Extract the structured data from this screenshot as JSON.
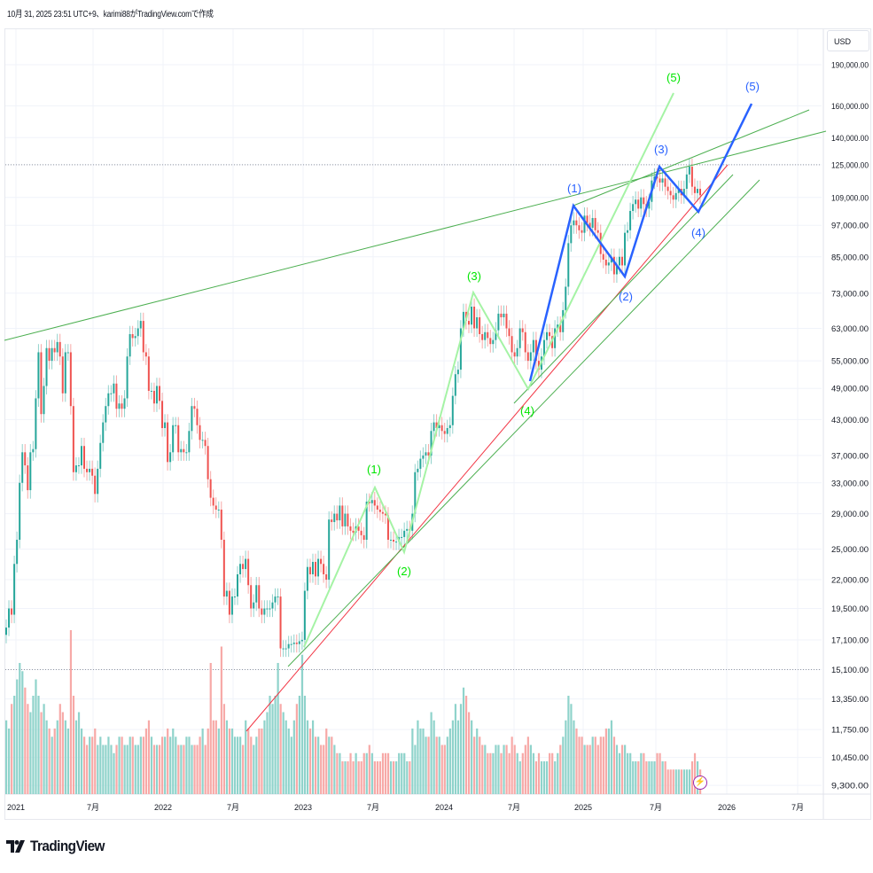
{
  "header": {
    "caption": "10月 31, 2025 23:51 UTC+9、karimi88がTradingView.comで作成"
  },
  "price_axis": {
    "currency": "USD"
  },
  "branding": {
    "logo_text": "TradingView"
  },
  "icons": {
    "alert": "lightning-icon",
    "logo": "tradingview-logo-icon"
  },
  "colors": {
    "up": "#26a69a",
    "down": "#ef5350",
    "vol_up": "#8fd3cb",
    "vol_down": "#f7a9a7",
    "trend_green": "#4caf50",
    "trend_red": "#f23645",
    "wave_light_green": "#a5f3a5",
    "wave_blue": "#2962ff",
    "label_green": "#00e600",
    "label_blue": "#2962ff"
  },
  "chart_data": {
    "type": "candlestick",
    "y_scale": "log",
    "interval": "weekly",
    "currency": "USD",
    "ylim": [
      9300,
      190000
    ],
    "y_ticks": [
      190000,
      160000,
      140000,
      125000,
      109000,
      97000,
      85000,
      73000,
      63000,
      55000,
      49000,
      43000,
      37000,
      33000,
      29000,
      25000,
      22000,
      19500,
      17100,
      15100,
      13350,
      11750,
      10450,
      9300
    ],
    "y_tick_labels": [
      "190,000.00",
      "160,000.00",
      "140,000.00",
      "125,000.00",
      "109,000.00",
      "97,000.00",
      "85,000.00",
      "73,000.00",
      "63,000.00",
      "55,000.00",
      "49,000.00",
      "43,000.00",
      "37,000.00",
      "33,000.00",
      "29,000.00",
      "25,000.00",
      "22,000.00",
      "19,500.00",
      "17,100.00",
      "15,100.00",
      "13,350.00",
      "11,750.00",
      "10,450.00",
      "9,300.00"
    ],
    "x_tick_labels": [
      "2021",
      "7月",
      "2022",
      "7月",
      "2023",
      "7月",
      "2024",
      "7月",
      "2025",
      "7月",
      "2026",
      "7月"
    ],
    "horizontal_levels": [
      125000,
      15100
    ],
    "closes": [
      18000,
      19500,
      19000,
      23500,
      26000,
      33000,
      37500,
      35500,
      32000,
      37500,
      38000,
      47000,
      57000,
      44000,
      49500,
      58000,
      55000,
      58000,
      57000,
      59500,
      56000,
      48000,
      57000,
      57000,
      45500,
      34500,
      35500,
      35500,
      38500,
      35000,
      34500,
      35000,
      34000,
      31500,
      35000,
      39000,
      42500,
      45500,
      48000,
      48000,
      50000,
      45000,
      46000,
      45000,
      47000,
      56000,
      61500,
      60500,
      61000,
      63000,
      65000,
      57000,
      56000,
      48500,
      48500,
      46000,
      49500,
      46500,
      41500,
      42500,
      36000,
      37500,
      42000,
      42000,
      37500,
      38000,
      37500,
      37500,
      41000,
      45500,
      45000,
      42000,
      39500,
      39500,
      38500,
      33500,
      31000,
      30000,
      29500,
      29500,
      26000,
      20500,
      21000,
      19000,
      20500,
      20500,
      22500,
      23500,
      23000,
      24000,
      21500,
      19500,
      20000,
      21500,
      19500,
      19000,
      19500,
      19500,
      19500,
      20000,
      20500,
      20500,
      16500,
      16500,
      16500,
      16800,
      16800,
      16900,
      16800,
      17000,
      17100,
      21000,
      23200,
      22500,
      23700,
      22300,
      24000,
      23500,
      22500,
      22000,
      28300,
      28000,
      29000,
      28200,
      30000,
      27500,
      29000,
      27500,
      27000,
      26800,
      27500,
      27000,
      26500,
      26000,
      30500,
      30300,
      30700,
      30000,
      29500,
      29200,
      29000,
      28800,
      26000,
      26000,
      25800,
      25800,
      26300,
      26300,
      27000,
      27200,
      27000,
      29000,
      34500,
      35000,
      36500,
      37000,
      37500,
      37000,
      41000,
      42500,
      41500,
      42000,
      41000,
      40500,
      41500,
      42000,
      47500,
      52000,
      53000,
      63000,
      67500,
      65000,
      64000,
      69000,
      63000,
      66000,
      61500,
      60000,
      62000,
      60500,
      59000,
      60000,
      62500,
      67000,
      66000,
      67000,
      63000,
      61000,
      57000,
      56000,
      58000,
      63000,
      62000,
      57000,
      55000,
      57000,
      60000,
      55000,
      53000,
      56000,
      60000,
      62000,
      61000,
      58000,
      63000,
      64000,
      62000,
      68000,
      75000,
      90000,
      97000,
      99000,
      97000,
      95000,
      94000,
      101000,
      98000,
      96000,
      100000,
      95000,
      94000,
      86000,
      84000,
      82000,
      83000,
      85000,
      79000,
      82000,
      85000,
      82000,
      94000,
      95000,
      103000,
      106000,
      108000,
      104000,
      109000,
      106000,
      104000,
      107000,
      117000,
      119000,
      118000,
      116000,
      118000,
      114000,
      112000,
      110000,
      108000,
      111000,
      113000,
      110000,
      113000,
      120000,
      124000,
      114000,
      111000,
      113000,
      110000
    ],
    "volume_relative": [
      45,
      40,
      55,
      60,
      70,
      80,
      75,
      65,
      55,
      50,
      60,
      70,
      60,
      50,
      55,
      45,
      40,
      35,
      40,
      45,
      55,
      50,
      45,
      40,
      100,
      60,
      45,
      50,
      40,
      35,
      30,
      35,
      35,
      40,
      30,
      35,
      30,
      30,
      35,
      30,
      25,
      30,
      35,
      35,
      30,
      30,
      35,
      35,
      30,
      30,
      35,
      35,
      40,
      45,
      35,
      30,
      30,
      30,
      35,
      35,
      40,
      35,
      40,
      35,
      30,
      30,
      30,
      35,
      35,
      30,
      30,
      30,
      35,
      40,
      30,
      40,
      80,
      45,
      45,
      40,
      90,
      55,
      45,
      40,
      40,
      35,
      35,
      35,
      30,
      45,
      40,
      35,
      30,
      35,
      40,
      40,
      45,
      50,
      60,
      55,
      60,
      80,
      55,
      50,
      45,
      40,
      35,
      45,
      55,
      60,
      85,
      60,
      45,
      40,
      45,
      35,
      35,
      30,
      30,
      40,
      35,
      35,
      30,
      25,
      25,
      20,
      20,
      20,
      25,
      20,
      25,
      20,
      20,
      25,
      25,
      30,
      25,
      20,
      20,
      20,
      25,
      25,
      25,
      20,
      20,
      20,
      25,
      25,
      25,
      20,
      20,
      40,
      30,
      45,
      40,
      40,
      35,
      35,
      50,
      45,
      35,
      35,
      30,
      30,
      35,
      40,
      45,
      55,
      45,
      55,
      65,
      60,
      50,
      45,
      35,
      40,
      35,
      30,
      30,
      25,
      25,
      25,
      30,
      30,
      25,
      30,
      30,
      25,
      35,
      30,
      25,
      20,
      25,
      30,
      35,
      30,
      25,
      20,
      25,
      20,
      20,
      20,
      25,
      25,
      20,
      25,
      30,
      35,
      45,
      60,
      55,
      45,
      40,
      35,
      35,
      30,
      30,
      30,
      35,
      35,
      30,
      35,
      35,
      40,
      40,
      45,
      35,
      30,
      25,
      30,
      30,
      25,
      25,
      20,
      20,
      20,
      25,
      25,
      20,
      20,
      20,
      20,
      25,
      25,
      20,
      20,
      15,
      15,
      15,
      15,
      15,
      15,
      15,
      15,
      15,
      20,
      25,
      20,
      15
    ],
    "wave_labels_green": [
      "(1)",
      "(2)",
      "(3)",
      "(4)",
      "(5)"
    ],
    "wave_labels_blue": [
      "(1)",
      "(2)",
      "(3)",
      "(4)",
      "(5)"
    ]
  }
}
